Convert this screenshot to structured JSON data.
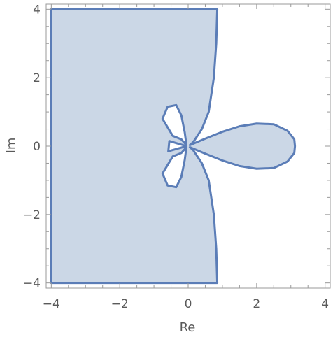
{
  "chart_data": {
    "type": "area",
    "title": "",
    "xlabel": "Re",
    "ylabel": "Im",
    "xlim": [
      -4.15,
      4.15
    ],
    "ylim": [
      -4.15,
      4.15
    ],
    "xticks": [
      -4,
      -2,
      0,
      2,
      4
    ],
    "yticks": [
      -4,
      -2,
      0,
      2,
      4
    ],
    "xtick_labels": [
      "−4",
      "−2",
      "0",
      "2",
      "4"
    ],
    "ytick_labels": [
      "−4",
      "−2",
      "0",
      "2",
      "4"
    ],
    "grid": false,
    "frame": true,
    "colors": {
      "fill": "#cbd7e6",
      "edge": "#5b7db7",
      "frame": "#9a9a9a"
    },
    "regions": [
      {
        "name": "outer-region",
        "boundary": [
          [
            -4,
            -4
          ],
          [
            0.85,
            -4
          ],
          [
            0.82,
            -3
          ],
          [
            0.75,
            -2
          ],
          [
            0.6,
            -1
          ],
          [
            0.4,
            -0.5
          ],
          [
            0.15,
            -0.12
          ],
          [
            0.05,
            -0.03
          ],
          [
            0.5,
            -0.22
          ],
          [
            1.0,
            -0.42
          ],
          [
            1.5,
            -0.58
          ],
          [
            2.0,
            -0.66
          ],
          [
            2.5,
            -0.64
          ],
          [
            2.9,
            -0.45
          ],
          [
            3.1,
            -0.2
          ],
          [
            3.12,
            0
          ],
          [
            3.1,
            0.2
          ],
          [
            2.9,
            0.45
          ],
          [
            2.5,
            0.64
          ],
          [
            2.0,
            0.66
          ],
          [
            1.5,
            0.58
          ],
          [
            1.0,
            0.42
          ],
          [
            0.5,
            0.22
          ],
          [
            0.05,
            0.03
          ],
          [
            0.15,
            0.12
          ],
          [
            0.4,
            0.5
          ],
          [
            0.6,
            1
          ],
          [
            0.75,
            2
          ],
          [
            0.82,
            3
          ],
          [
            0.85,
            4
          ],
          [
            -4,
            4
          ]
        ]
      },
      {
        "name": "hole-upper",
        "boundary": [
          [
            -0.05,
            0.03
          ],
          [
            -0.2,
            0.2
          ],
          [
            -0.45,
            0.3
          ],
          [
            -0.75,
            0.8
          ],
          [
            -0.6,
            1.15
          ],
          [
            -0.35,
            1.2
          ],
          [
            -0.2,
            0.9
          ],
          [
            -0.1,
            0.4
          ]
        ]
      },
      {
        "name": "hole-lower",
        "boundary": [
          [
            -0.05,
            -0.03
          ],
          [
            -0.2,
            -0.2
          ],
          [
            -0.45,
            -0.3
          ],
          [
            -0.75,
            -0.8
          ],
          [
            -0.6,
            -1.15
          ],
          [
            -0.35,
            -1.2
          ],
          [
            -0.2,
            -0.9
          ],
          [
            -0.1,
            -0.4
          ]
        ]
      },
      {
        "name": "hole-left",
        "boundary": [
          [
            -0.05,
            0
          ],
          [
            -0.55,
            0.15
          ],
          [
            -0.58,
            -0.15
          ]
        ]
      }
    ]
  }
}
